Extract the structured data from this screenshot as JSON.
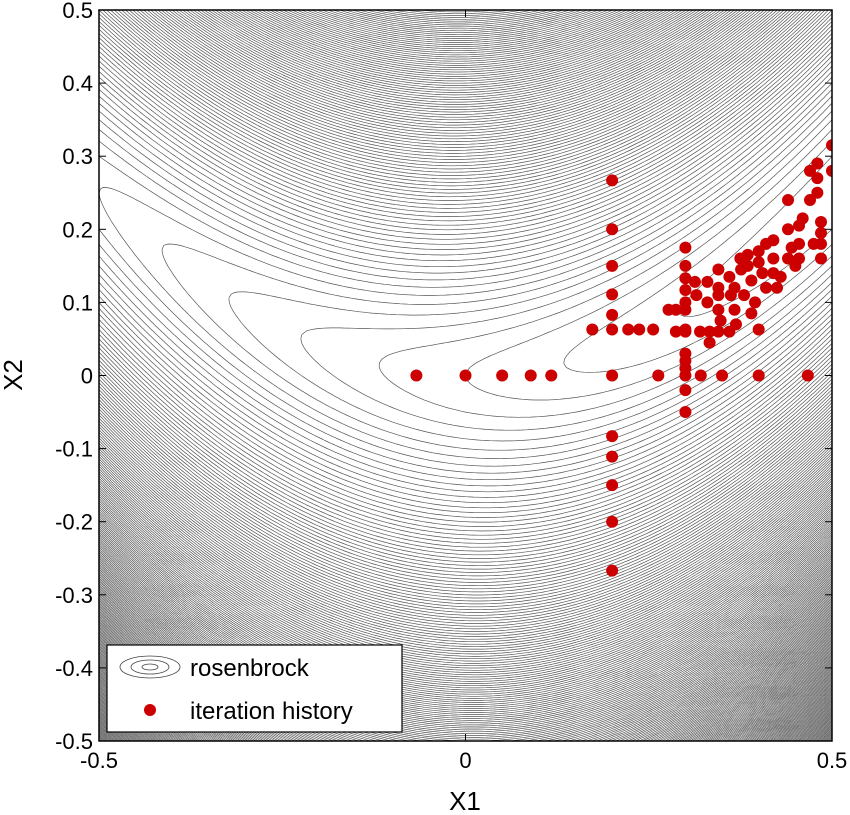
{
  "chart_data": {
    "type": "scatter",
    "xlabel": "X1",
    "ylabel": "X2",
    "xlim": [
      -0.5,
      0.5
    ],
    "ylim": [
      -0.5,
      0.5
    ],
    "xticks": [
      "-0.5",
      "0",
      "0.5"
    ],
    "yticks": [
      "0.5",
      "0.4",
      "0.3",
      "0.2",
      "0.1",
      "0",
      "-0.1",
      "-0.2",
      "-0.3",
      "-0.4",
      "-0.5"
    ],
    "grid": false,
    "legend_position": "bottom-left",
    "contour": {
      "function": "rosenbrock",
      "color": "#555555",
      "levels": [
        0.25,
        0.5,
        0.75,
        1.0,
        1.25,
        1.5,
        1.75,
        2.0,
        2.25,
        2.5,
        2.75,
        3.0,
        3.25,
        3.5,
        3.75,
        4.0,
        4.25,
        4.5,
        4.75,
        5.0,
        5.25,
        5.5,
        5.75,
        6.0,
        6.25,
        6.5,
        6.75,
        7.0,
        7.25,
        7.5,
        7.75,
        8.0,
        8.25,
        8.5,
        8.75,
        9.0,
        9.25,
        9.5,
        9.75,
        10.0,
        10.25,
        10.5,
        10.75,
        11.0,
        11.25,
        11.5,
        11.75,
        12.0,
        12.25,
        12.5,
        12.75,
        13.0,
        13.25,
        13.5,
        13.75,
        14.0,
        14.25,
        14.5,
        14.75,
        15.0,
        15.25,
        15.5,
        15.75,
        16.0,
        16.25,
        16.5,
        16.75,
        17.0,
        17.25,
        17.5,
        17.75,
        18.0,
        18.25,
        18.5,
        18.75,
        19.0,
        19.25,
        19.5,
        19.75,
        20.0,
        20.25,
        20.5,
        20.75,
        21.0,
        21.25,
        21.5,
        21.75,
        22.0,
        22.25,
        22.5,
        22.75,
        23.0,
        23.25,
        23.5,
        23.75,
        24.0,
        24.25,
        24.5,
        24.75,
        25.0,
        25.25,
        25.5,
        25.75,
        26.0,
        26.25,
        26.5,
        26.75,
        27.0,
        27.25,
        27.5,
        27.75,
        28.0,
        28.25,
        28.5,
        28.75,
        29.0,
        29.25,
        29.5,
        29.75,
        30.0,
        30.25,
        30.5,
        30.75,
        31.0,
        31.25,
        31.5,
        31.75,
        32.0,
        32.25,
        32.5,
        32.75,
        33.0,
        33.25,
        33.5,
        33.75,
        34.0,
        34.25,
        34.5,
        34.75,
        35.0,
        35.25,
        35.5,
        35.75,
        36.0,
        36.25,
        36.5,
        36.75,
        37.0,
        37.25,
        37.5,
        37.75,
        38.0,
        38.25,
        38.5,
        38.75,
        39.0,
        39.25,
        39.5,
        39.75,
        40.0,
        40.25,
        40.5,
        40.75,
        41.0,
        41.25,
        41.5,
        41.75,
        42.0,
        42.25,
        42.5,
        42.75,
        43.0,
        43.25,
        43.5,
        43.75,
        44.0,
        44.25,
        44.5,
        44.75,
        45.0,
        45.25,
        45.5,
        45.75,
        46.0,
        46.25,
        46.5,
        46.75,
        47.0,
        47.25,
        47.5,
        47.75,
        48.0,
        48.25,
        48.5,
        48.75,
        49.0,
        49.25,
        49.5,
        49.75,
        50.0,
        50.25,
        50.5,
        50.75,
        51.0,
        51.25,
        51.5,
        51.75,
        52.0,
        52.25,
        52.5,
        52.75,
        53.0,
        53.25,
        53.5,
        53.75,
        54.0,
        54.25,
        54.5,
        54.75,
        55.0,
        55.25,
        55.5,
        55.75,
        56.0,
        56.25,
        56.5,
        56.75,
        57.0,
        57.25,
        57.5,
        57.75,
        58.0,
        58.25,
        58.5,
        58.75,
        59.0,
        59.25,
        59.5,
        59.75,
        60.0,
        60.25,
        60.5,
        60.75,
        61.0
      ]
    },
    "series": [
      {
        "name": "iteration history",
        "color": "#cc0000",
        "points": [
          [
            -0.067,
            0
          ],
          [
            0,
            0
          ],
          [
            0.05,
            0
          ],
          [
            0.089,
            0
          ],
          [
            0.117,
            0
          ],
          [
            0.2,
            0.267
          ],
          [
            0.2,
            0.2
          ],
          [
            0.2,
            0.15
          ],
          [
            0.2,
            0.111
          ],
          [
            0.2,
            0.083
          ],
          [
            0.2,
            0.063
          ],
          [
            0.2,
            0
          ],
          [
            0.2,
            -0.083
          ],
          [
            0.2,
            -0.111
          ],
          [
            0.2,
            -0.15
          ],
          [
            0.2,
            -0.2
          ],
          [
            0.2,
            -0.267
          ],
          [
            0.173,
            0.063
          ],
          [
            0.222,
            0.063
          ],
          [
            0.237,
            0.063
          ],
          [
            0.256,
            0.063
          ],
          [
            0.263,
            0
          ],
          [
            0.3,
            0
          ],
          [
            0.321,
            0
          ],
          [
            0.35,
            0
          ],
          [
            0.4,
            0
          ],
          [
            0.467,
            0
          ],
          [
            0.3,
            0.175
          ],
          [
            0.3,
            0.15
          ],
          [
            0.3,
            0.133
          ],
          [
            0.3,
            0.117
          ],
          [
            0.3,
            0.1
          ],
          [
            0.3,
            0.09
          ],
          [
            0.3,
            0.063
          ],
          [
            0.3,
            0.03
          ],
          [
            0.3,
            0.02
          ],
          [
            0.3,
            0.01
          ],
          [
            0.3,
            -0.02
          ],
          [
            0.3,
            -0.05
          ],
          [
            0.277,
            0.09
          ],
          [
            0.287,
            0.09
          ],
          [
            0.287,
            0.06
          ],
          [
            0.3,
            0.06
          ],
          [
            0.32,
            0.06
          ],
          [
            0.333,
            0.06
          ],
          [
            0.333,
            0.045
          ],
          [
            0.345,
            0.06
          ],
          [
            0.36,
            0.06
          ],
          [
            0.4,
            0.063
          ],
          [
            0.315,
            0.11
          ],
          [
            0.313,
            0.128
          ],
          [
            0.33,
            0.128
          ],
          [
            0.33,
            0.1
          ],
          [
            0.345,
            0.145
          ],
          [
            0.345,
            0.12
          ],
          [
            0.345,
            0.11
          ],
          [
            0.345,
            0.09
          ],
          [
            0.348,
            0.075
          ],
          [
            0.36,
            0.135
          ],
          [
            0.362,
            0.11
          ],
          [
            0.367,
            0.12
          ],
          [
            0.367,
            0.09
          ],
          [
            0.369,
            0.07
          ],
          [
            0.375,
            0.16
          ],
          [
            0.376,
            0.145
          ],
          [
            0.38,
            0.11
          ],
          [
            0.385,
            0.165
          ],
          [
            0.385,
            0.15
          ],
          [
            0.39,
            0.13
          ],
          [
            0.395,
            0.1
          ],
          [
            0.39,
            0.085
          ],
          [
            0.4,
            0.17
          ],
          [
            0.4,
            0.155
          ],
          [
            0.41,
            0.18
          ],
          [
            0.405,
            0.14
          ],
          [
            0.41,
            0.12
          ],
          [
            0.42,
            0.185
          ],
          [
            0.42,
            0.16
          ],
          [
            0.42,
            0.14
          ],
          [
            0.425,
            0.12
          ],
          [
            0.43,
            0.135
          ],
          [
            0.44,
            0.24
          ],
          [
            0.44,
            0.2
          ],
          [
            0.445,
            0.175
          ],
          [
            0.44,
            0.16
          ],
          [
            0.45,
            0.15
          ],
          [
            0.455,
            0.205
          ],
          [
            0.455,
            0.18
          ],
          [
            0.455,
            0.16
          ],
          [
            0.46,
            0.215
          ],
          [
            0.47,
            0.28
          ],
          [
            0.47,
            0.24
          ],
          [
            0.475,
            0.18
          ],
          [
            0.48,
            0.25
          ],
          [
            0.48,
            0.29
          ],
          [
            0.485,
            0.21
          ],
          [
            0.485,
            0.195
          ],
          [
            0.485,
            0.18
          ],
          [
            0.485,
            0.16
          ],
          [
            0.48,
            0.27
          ],
          [
            0.5,
            0.315
          ],
          [
            0.5,
            0.28
          ]
        ]
      }
    ],
    "legend": [
      {
        "name": "rosenbrock",
        "marker": "contour"
      },
      {
        "name": "iteration history",
        "marker": "filled-circle"
      }
    ]
  }
}
